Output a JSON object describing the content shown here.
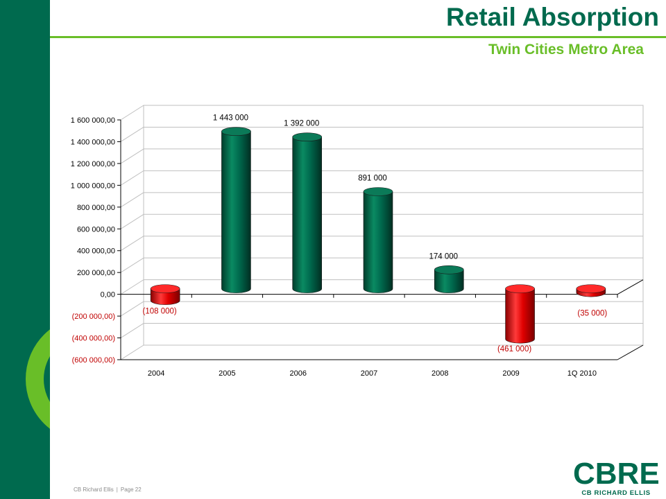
{
  "slide": {
    "title": "Retail Absorption",
    "subtitle": "Twin Cities Metro Area"
  },
  "footer": {
    "company": "CB Richard Ellis",
    "page": "Page 22"
  },
  "logo": {
    "mark": "CBRE",
    "name": "CB RICHARD ELLIS"
  },
  "colors": {
    "brand_green": "#006a4e",
    "accent_green": "#69be28",
    "positive_bar": "#006a4e",
    "negative_bar": "#e00000",
    "negative_label": "#c00000"
  },
  "chart_data": {
    "type": "bar",
    "categories": [
      "2004",
      "2005",
      "2006",
      "2007",
      "2008",
      "2009",
      "1Q 2010"
    ],
    "values": [
      -108000,
      1443000,
      1392000,
      891000,
      174000,
      -461000,
      -35000
    ],
    "data_labels": [
      "(108 000)",
      "1 443 000",
      "1 392 000",
      "891 000",
      "174 000",
      "(461 000)",
      "(35 000)"
    ],
    "ylim": [
      -600000,
      1600000
    ],
    "yticks": [
      1600000,
      1400000,
      1200000,
      1000000,
      800000,
      600000,
      400000,
      200000,
      0,
      -200000,
      -400000,
      -600000
    ],
    "ytick_labels": [
      "1 600 000,00",
      "1 400 000,00",
      "1 200 000,00",
      "1 000 000,00",
      "800 000,00",
      "600 000,00",
      "400 000,00",
      "200 000,00",
      "0,00",
      "(200 000,00)",
      "(400 000,00)",
      "(600 000,00)"
    ],
    "title": "",
    "xlabel": "",
    "ylabel": "",
    "grid": true,
    "legend": "none",
    "style": "3d-cylinder"
  }
}
